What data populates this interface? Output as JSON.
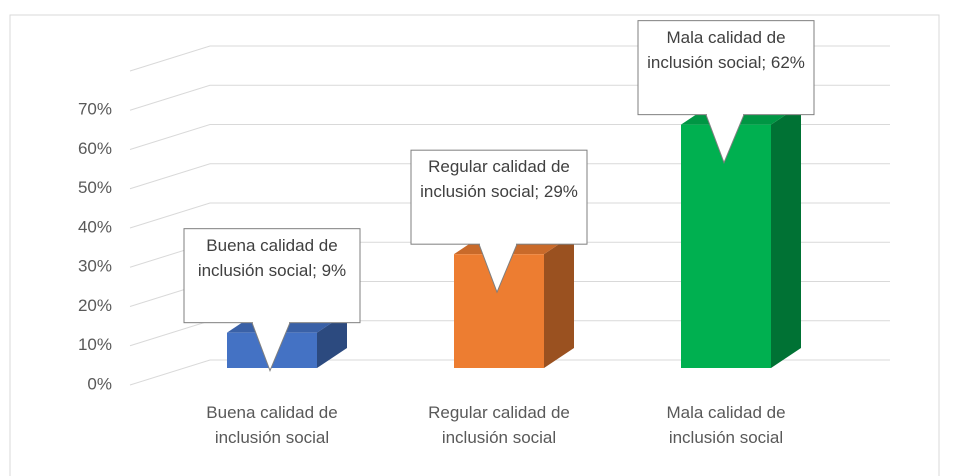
{
  "chart_data": {
    "type": "bar3d",
    "categories": [
      "Buena calidad de inclusión social",
      "Regular calidad de inclusión social",
      "Mala calidad de inclusión social"
    ],
    "values": [
      9,
      29,
      62
    ],
    "value_labels": [
      "Buena calidad de inclusión social; 9%",
      "Regular calidad de inclusión social; 29%",
      "Mala calidad de inclusión social; 62%"
    ],
    "colors": [
      "#4472c4",
      "#ed7d31",
      "#00b050"
    ],
    "ylim": [
      0,
      80
    ],
    "yticks": [
      {
        "value": 0,
        "label": "0%"
      },
      {
        "value": 10,
        "label": "10%"
      },
      {
        "value": 20,
        "label": "20%"
      },
      {
        "value": 30,
        "label": "30%"
      },
      {
        "value": 40,
        "label": "40%"
      },
      {
        "value": 50,
        "label": "50%"
      },
      {
        "value": 60,
        "label": "60%"
      },
      {
        "value": 70,
        "label": "70%"
      }
    ],
    "grid": true
  }
}
